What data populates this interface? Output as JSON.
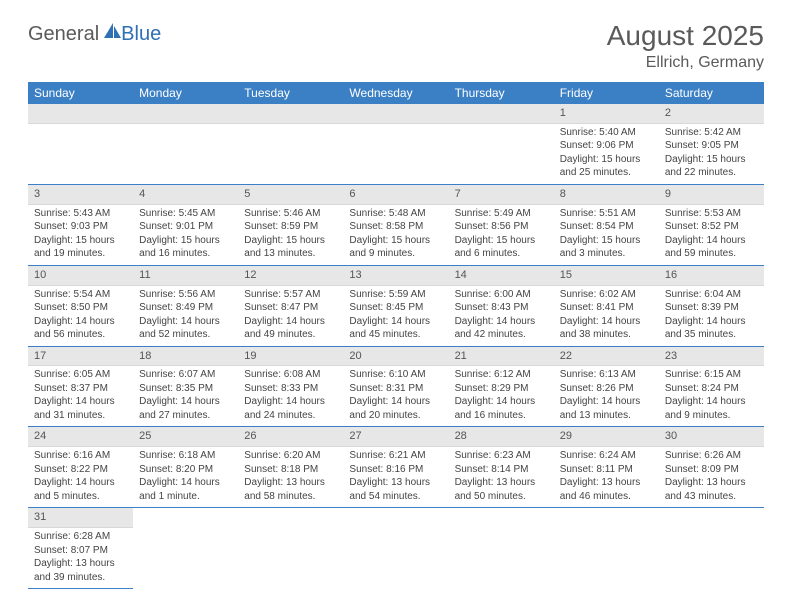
{
  "logo": {
    "text1": "General",
    "text2": "Blue"
  },
  "title": "August 2025",
  "location": "Ellrich, Germany",
  "colors": {
    "header_bg": "#3b7fc4",
    "header_fg": "#ffffff",
    "daynum_bg": "#e7e7e7",
    "border": "#3b7fc4"
  },
  "weekdays": [
    "Sunday",
    "Monday",
    "Tuesday",
    "Wednesday",
    "Thursday",
    "Friday",
    "Saturday"
  ],
  "weeks": [
    [
      null,
      null,
      null,
      null,
      null,
      {
        "n": "1",
        "sr": "Sunrise: 5:40 AM",
        "ss": "Sunset: 9:06 PM",
        "dl": "Daylight: 15 hours and 25 minutes."
      },
      {
        "n": "2",
        "sr": "Sunrise: 5:42 AM",
        "ss": "Sunset: 9:05 PM",
        "dl": "Daylight: 15 hours and 22 minutes."
      }
    ],
    [
      {
        "n": "3",
        "sr": "Sunrise: 5:43 AM",
        "ss": "Sunset: 9:03 PM",
        "dl": "Daylight: 15 hours and 19 minutes."
      },
      {
        "n": "4",
        "sr": "Sunrise: 5:45 AM",
        "ss": "Sunset: 9:01 PM",
        "dl": "Daylight: 15 hours and 16 minutes."
      },
      {
        "n": "5",
        "sr": "Sunrise: 5:46 AM",
        "ss": "Sunset: 8:59 PM",
        "dl": "Daylight: 15 hours and 13 minutes."
      },
      {
        "n": "6",
        "sr": "Sunrise: 5:48 AM",
        "ss": "Sunset: 8:58 PM",
        "dl": "Daylight: 15 hours and 9 minutes."
      },
      {
        "n": "7",
        "sr": "Sunrise: 5:49 AM",
        "ss": "Sunset: 8:56 PM",
        "dl": "Daylight: 15 hours and 6 minutes."
      },
      {
        "n": "8",
        "sr": "Sunrise: 5:51 AM",
        "ss": "Sunset: 8:54 PM",
        "dl": "Daylight: 15 hours and 3 minutes."
      },
      {
        "n": "9",
        "sr": "Sunrise: 5:53 AM",
        "ss": "Sunset: 8:52 PM",
        "dl": "Daylight: 14 hours and 59 minutes."
      }
    ],
    [
      {
        "n": "10",
        "sr": "Sunrise: 5:54 AM",
        "ss": "Sunset: 8:50 PM",
        "dl": "Daylight: 14 hours and 56 minutes."
      },
      {
        "n": "11",
        "sr": "Sunrise: 5:56 AM",
        "ss": "Sunset: 8:49 PM",
        "dl": "Daylight: 14 hours and 52 minutes."
      },
      {
        "n": "12",
        "sr": "Sunrise: 5:57 AM",
        "ss": "Sunset: 8:47 PM",
        "dl": "Daylight: 14 hours and 49 minutes."
      },
      {
        "n": "13",
        "sr": "Sunrise: 5:59 AM",
        "ss": "Sunset: 8:45 PM",
        "dl": "Daylight: 14 hours and 45 minutes."
      },
      {
        "n": "14",
        "sr": "Sunrise: 6:00 AM",
        "ss": "Sunset: 8:43 PM",
        "dl": "Daylight: 14 hours and 42 minutes."
      },
      {
        "n": "15",
        "sr": "Sunrise: 6:02 AM",
        "ss": "Sunset: 8:41 PM",
        "dl": "Daylight: 14 hours and 38 minutes."
      },
      {
        "n": "16",
        "sr": "Sunrise: 6:04 AM",
        "ss": "Sunset: 8:39 PM",
        "dl": "Daylight: 14 hours and 35 minutes."
      }
    ],
    [
      {
        "n": "17",
        "sr": "Sunrise: 6:05 AM",
        "ss": "Sunset: 8:37 PM",
        "dl": "Daylight: 14 hours and 31 minutes."
      },
      {
        "n": "18",
        "sr": "Sunrise: 6:07 AM",
        "ss": "Sunset: 8:35 PM",
        "dl": "Daylight: 14 hours and 27 minutes."
      },
      {
        "n": "19",
        "sr": "Sunrise: 6:08 AM",
        "ss": "Sunset: 8:33 PM",
        "dl": "Daylight: 14 hours and 24 minutes."
      },
      {
        "n": "20",
        "sr": "Sunrise: 6:10 AM",
        "ss": "Sunset: 8:31 PM",
        "dl": "Daylight: 14 hours and 20 minutes."
      },
      {
        "n": "21",
        "sr": "Sunrise: 6:12 AM",
        "ss": "Sunset: 8:29 PM",
        "dl": "Daylight: 14 hours and 16 minutes."
      },
      {
        "n": "22",
        "sr": "Sunrise: 6:13 AM",
        "ss": "Sunset: 8:26 PM",
        "dl": "Daylight: 14 hours and 13 minutes."
      },
      {
        "n": "23",
        "sr": "Sunrise: 6:15 AM",
        "ss": "Sunset: 8:24 PM",
        "dl": "Daylight: 14 hours and 9 minutes."
      }
    ],
    [
      {
        "n": "24",
        "sr": "Sunrise: 6:16 AM",
        "ss": "Sunset: 8:22 PM",
        "dl": "Daylight: 14 hours and 5 minutes."
      },
      {
        "n": "25",
        "sr": "Sunrise: 6:18 AM",
        "ss": "Sunset: 8:20 PM",
        "dl": "Daylight: 14 hours and 1 minute."
      },
      {
        "n": "26",
        "sr": "Sunrise: 6:20 AM",
        "ss": "Sunset: 8:18 PM",
        "dl": "Daylight: 13 hours and 58 minutes."
      },
      {
        "n": "27",
        "sr": "Sunrise: 6:21 AM",
        "ss": "Sunset: 8:16 PM",
        "dl": "Daylight: 13 hours and 54 minutes."
      },
      {
        "n": "28",
        "sr": "Sunrise: 6:23 AM",
        "ss": "Sunset: 8:14 PM",
        "dl": "Daylight: 13 hours and 50 minutes."
      },
      {
        "n": "29",
        "sr": "Sunrise: 6:24 AM",
        "ss": "Sunset: 8:11 PM",
        "dl": "Daylight: 13 hours and 46 minutes."
      },
      {
        "n": "30",
        "sr": "Sunrise: 6:26 AM",
        "ss": "Sunset: 8:09 PM",
        "dl": "Daylight: 13 hours and 43 minutes."
      }
    ],
    [
      {
        "n": "31",
        "sr": "Sunrise: 6:28 AM",
        "ss": "Sunset: 8:07 PM",
        "dl": "Daylight: 13 hours and 39 minutes."
      },
      null,
      null,
      null,
      null,
      null,
      null
    ]
  ]
}
